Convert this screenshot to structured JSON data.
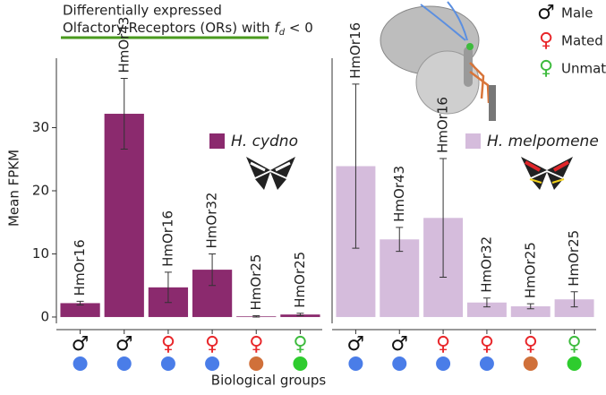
{
  "title": [
    "Differentially expressed",
    "Olfactory Receptors (ORs) with",
    "f",
    "d",
    "< 0"
  ],
  "xlabel": "Biological groups",
  "ylabel": "Mean FPKM",
  "groups_legend": [
    {
      "symbol": "♂",
      "label": "Male",
      "color": "#111111"
    },
    {
      "symbol": "♀",
      "label": "Mated",
      "color": "#e8262a"
    },
    {
      "symbol": "♀",
      "label": "Unmated",
      "color": "#3dbb3d"
    }
  ],
  "chart_data": [
    {
      "type": "bar",
      "categories": [
        "♂",
        "♂",
        "♀",
        "♀",
        "♀",
        "♀"
      ],
      "category_colors": [
        "#111111",
        "#111111",
        "#e8262a",
        "#e8262a",
        "#e8262a",
        "#3dbb3d"
      ],
      "dot_colors": [
        "#4a7de8",
        "#4a7de8",
        "#4a7de8",
        "#4a7de8",
        "#d0703a",
        "#2ecc2e"
      ],
      "series": [
        {
          "name": "H. cydno",
          "color": "#8b2a6e",
          "values": [
            2.2,
            32.2,
            4.7,
            7.5,
            0.1,
            0.4
          ],
          "errors": [
            0.3,
            5.6,
            2.4,
            2.5,
            0.1,
            0.2
          ],
          "bar_labels": [
            "HmOr16",
            "HmOr43",
            "HmOr16",
            "HmOr32",
            "HmOr25",
            "HmOr25"
          ]
        }
      ],
      "ylim": [
        -1,
        41
      ],
      "yticks": [
        0,
        10,
        20,
        30
      ]
    },
    {
      "type": "bar",
      "categories": [
        "♂",
        "♂",
        "♀",
        "♀",
        "♀",
        "♀"
      ],
      "category_colors": [
        "#111111",
        "#111111",
        "#e8262a",
        "#e8262a",
        "#e8262a",
        "#3dbb3d"
      ],
      "dot_colors": [
        "#4a7de8",
        "#4a7de8",
        "#4a7de8",
        "#4a7de8",
        "#d0703a",
        "#2ecc2e"
      ],
      "series": [
        {
          "name": "H. melpomene",
          "color": "#d5bcdc",
          "values": [
            23.9,
            12.3,
            15.7,
            2.3,
            1.7,
            2.8
          ],
          "errors": [
            13,
            1.9,
            9.4,
            0.7,
            0.4,
            1.2
          ],
          "bar_labels": [
            "HmOr16",
            "HmOr43",
            "HmOr16",
            "HmOr32",
            "HmOr25",
            "HmOr25"
          ]
        }
      ],
      "ylim": [
        -1,
        41
      ]
    }
  ]
}
